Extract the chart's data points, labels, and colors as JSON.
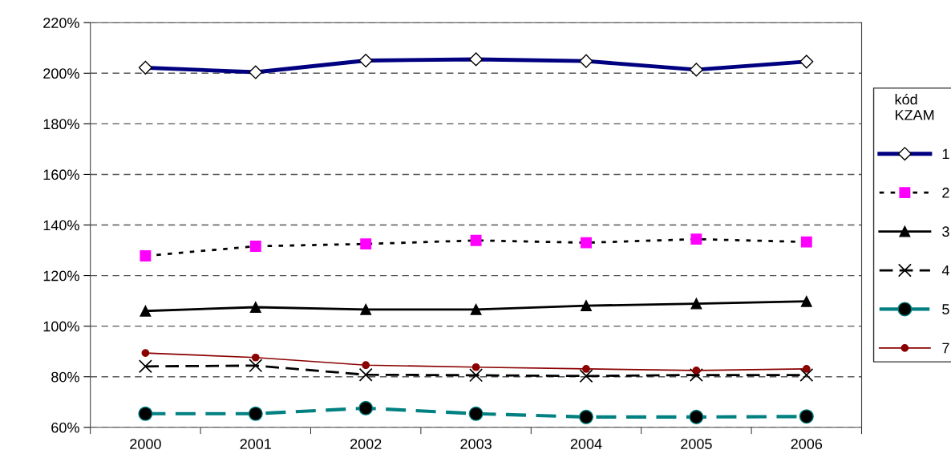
{
  "chart_data": {
    "type": "line",
    "categories": [
      "2000",
      "2001",
      "2002",
      "2003",
      "2004",
      "2005",
      "2006"
    ],
    "ylim": [
      60,
      220
    ],
    "yticks": [
      {
        "value": 60,
        "label": "60%"
      },
      {
        "value": 80,
        "label": "80%"
      },
      {
        "value": 100,
        "label": "100%"
      },
      {
        "value": 120,
        "label": "120%"
      },
      {
        "value": 140,
        "label": "140%"
      },
      {
        "value": 160,
        "label": "160%"
      },
      {
        "value": 180,
        "label": "180%"
      },
      {
        "value": 200,
        "label": "200%"
      },
      {
        "value": 220,
        "label": "220%"
      }
    ],
    "grid": "y",
    "legend": "right",
    "legend_title": "kód\nKZAM",
    "series": [
      {
        "name": "1",
        "color": "#000080",
        "marker": "diamond",
        "line_style": "solid",
        "values": [
          202.2,
          200.4,
          205.0,
          205.5,
          204.8,
          201.4,
          204.6
        ]
      },
      {
        "name": "2",
        "color": "#ff00ff",
        "marker": "square",
        "line_style": "dotted",
        "values": [
          127.8,
          131.6,
          132.5,
          133.9,
          133.0,
          134.4,
          133.3
        ]
      },
      {
        "name": "3",
        "color": "#000000",
        "marker": "triangle",
        "line_style": "solid",
        "values": [
          106.0,
          107.5,
          106.6,
          106.6,
          108.1,
          108.9,
          109.8
        ]
      },
      {
        "name": "4",
        "color": "#000000",
        "marker": "cross",
        "line_style": "dashed",
        "values": [
          84.1,
          84.4,
          80.8,
          80.6,
          80.3,
          80.7,
          80.7
        ]
      },
      {
        "name": "5",
        "color": "#008080",
        "marker": "circle",
        "line_style": "dashed",
        "values": [
          65.4,
          65.4,
          67.6,
          65.4,
          64.1,
          64.1,
          64.3
        ]
      },
      {
        "name": "7",
        "color": "#8b0000",
        "marker": "circle",
        "line_style": "solid",
        "values": [
          89.4,
          87.6,
          84.6,
          83.8,
          83.1,
          82.5,
          83.1
        ]
      }
    ]
  }
}
